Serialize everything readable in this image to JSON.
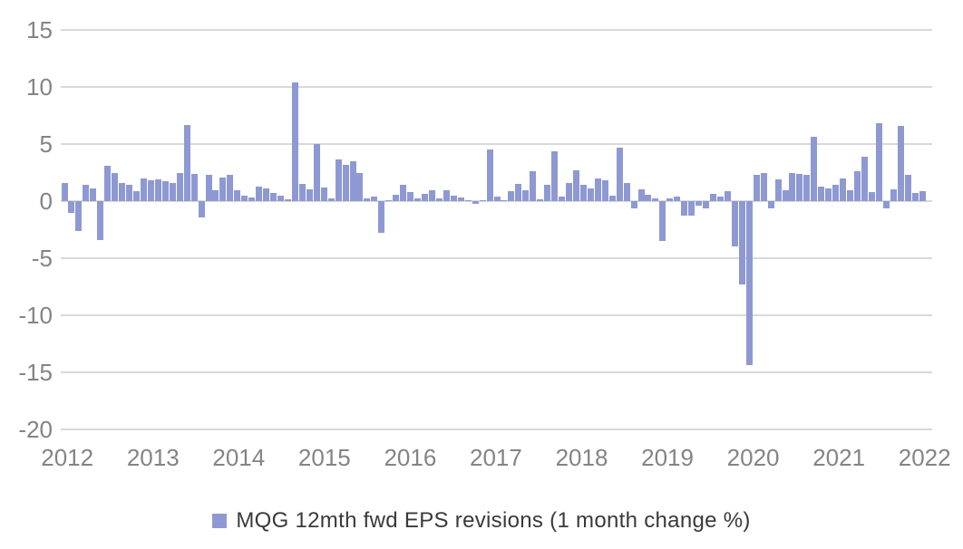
{
  "chart_data": {
    "type": "bar",
    "title": "",
    "legend": "MQG 12mth fwd EPS revisions (1 month change %)",
    "legend_position": "bottom",
    "x_tick_labels": [
      "2012",
      "2013",
      "2014",
      "2015",
      "2016",
      "2017",
      "2018",
      "2019",
      "2020",
      "2021",
      "2022"
    ],
    "y_ticks": [
      15,
      10,
      5,
      0,
      -5,
      -10,
      -15,
      -20
    ],
    "ylim": [
      -20,
      15
    ],
    "grid": "horizontal",
    "frequency": "monthly",
    "x_start": "2012-01",
    "x_end": "2021-12",
    "series": [
      {
        "name": "MQG 12mth fwd EPS revisions (1 month change %)",
        "unit": "%",
        "values": [
          1.6,
          -1.0,
          -2.6,
          1.4,
          1.1,
          -3.4,
          3.1,
          2.5,
          1.6,
          1.4,
          0.9,
          2.0,
          1.8,
          1.9,
          1.75,
          1.6,
          2.5,
          6.7,
          2.4,
          -1.4,
          2.3,
          0.95,
          2.05,
          2.3,
          0.95,
          0.5,
          0.3,
          1.3,
          1.1,
          0.75,
          0.5,
          0.15,
          10.4,
          1.5,
          1.0,
          5.0,
          1.2,
          0.2,
          3.65,
          3.2,
          3.5,
          2.5,
          0.2,
          0.4,
          -2.8,
          0.05,
          0.55,
          1.4,
          0.8,
          0.25,
          0.6,
          0.95,
          0.25,
          0.95,
          0.5,
          0.3,
          0.0,
          -0.25,
          0.1,
          4.5,
          0.4,
          0.1,
          0.9,
          1.5,
          0.95,
          2.6,
          0.15,
          1.4,
          4.4,
          0.4,
          1.6,
          2.7,
          1.4,
          1.15,
          2.0,
          1.8,
          0.5,
          4.7,
          1.6,
          -0.6,
          1.0,
          0.55,
          0.2,
          -3.5,
          0.25,
          0.4,
          -1.25,
          -1.3,
          -0.4,
          -0.6,
          0.6,
          0.4,
          0.9,
          -4.0,
          -7.3,
          -14.4,
          2.3,
          2.5,
          -0.6,
          1.9,
          0.95,
          2.5,
          2.4,
          2.3,
          5.6,
          1.25,
          1.1,
          1.45,
          2.0,
          0.95,
          2.6,
          3.9,
          0.8,
          6.8,
          -0.6,
          1.0,
          6.6,
          2.3,
          0.75,
          0.9
        ]
      }
    ],
    "colors": {
      "bar": "#8E99D3",
      "gridline": "#D9D9D9",
      "axis_label": "#848484"
    }
  }
}
